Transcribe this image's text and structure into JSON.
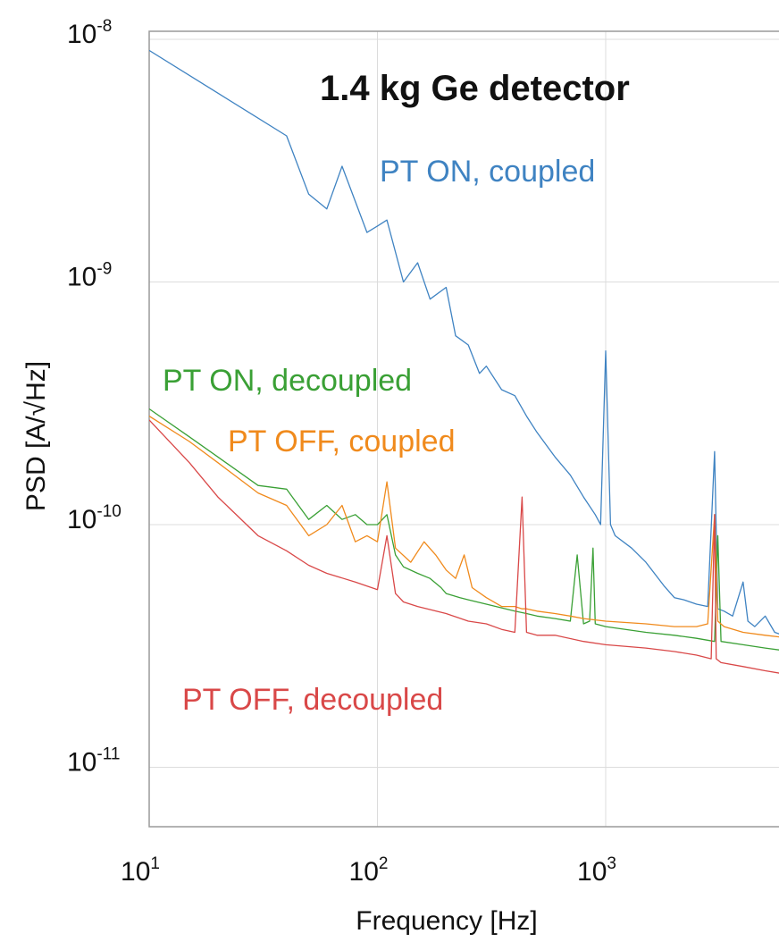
{
  "chart_data": {
    "type": "line",
    "title": "1.4 kg Ge detector",
    "xlabel": "Frequency [Hz]",
    "ylabel": "PSD [A/√Hz]",
    "x_scale": "log",
    "y_scale": "log",
    "xlim": [
      10,
      6500
    ],
    "ylim": [
      5.5e-12,
      1e-08
    ],
    "grid": true,
    "legend": "inline labels",
    "x_ticks": [
      {
        "value": 10,
        "base": "10",
        "exp": "1"
      },
      {
        "value": 100,
        "base": "10",
        "exp": "2"
      },
      {
        "value": 1000,
        "base": "10",
        "exp": "3"
      }
    ],
    "y_ticks": [
      {
        "value": 1e-08,
        "base": "10",
        "exp": "-8"
      },
      {
        "value": 1e-09,
        "base": "10",
        "exp": "-9"
      },
      {
        "value": 1e-10,
        "base": "10",
        "exp": "-10"
      },
      {
        "value": 1e-11,
        "base": "10",
        "exp": "-11"
      }
    ],
    "series": [
      {
        "name": "PT ON, coupled",
        "color": "#3f83c2",
        "x": [
          10,
          20,
          40,
          50,
          60,
          70,
          90,
          100,
          110,
          130,
          150,
          170,
          200,
          220,
          250,
          280,
          300,
          350,
          400,
          450,
          500,
          600,
          700,
          800,
          900,
          950,
          1000,
          1050,
          1100,
          1300,
          1500,
          1800,
          2000,
          2200,
          2500,
          2800,
          3000,
          3100,
          3300,
          3600,
          4000,
          4200,
          4500,
          5000,
          5500,
          6000,
          6500
        ],
        "y": [
          9e-09,
          6e-09,
          4e-09,
          2.3e-09,
          2e-09,
          3e-09,
          1.6e-09,
          1.7e-09,
          1.8e-09,
          1e-09,
          1.2e-09,
          8.5e-10,
          9.5e-10,
          6e-10,
          5.5e-10,
          4.2e-10,
          4.5e-10,
          3.6e-10,
          3.4e-10,
          2.8e-10,
          2.4e-10,
          1.9e-10,
          1.6e-10,
          1.3e-10,
          1.1e-10,
          1e-10,
          5.2e-10,
          1e-10,
          9e-11,
          8e-11,
          7e-11,
          5.6e-11,
          5e-11,
          4.9e-11,
          4.7e-11,
          4.6e-11,
          2e-10,
          4.5e-11,
          4.4e-11,
          4.2e-11,
          5.8e-11,
          4e-11,
          3.8e-11,
          4.2e-11,
          3.6e-11,
          3.5e-11,
          3.4e-11
        ]
      },
      {
        "name": "PT ON, decoupled",
        "color": "#3aa035",
        "x": [
          10,
          15,
          20,
          30,
          40,
          50,
          60,
          70,
          80,
          90,
          100,
          110,
          120,
          130,
          150,
          170,
          190,
          200,
          230,
          250,
          300,
          400,
          450,
          500,
          600,
          700,
          750,
          800,
          850,
          880,
          900,
          1000,
          1500,
          2000,
          2500,
          3000,
          3100,
          3200,
          4000,
          5000,
          6500
        ],
        "y": [
          3e-10,
          2.3e-10,
          1.9e-10,
          1.45e-10,
          1.4e-10,
          1.05e-10,
          1.2e-10,
          1.05e-10,
          1.1e-10,
          1e-10,
          1e-10,
          1.1e-10,
          7.5e-11,
          6.7e-11,
          6.3e-11,
          6e-11,
          5.5e-11,
          5.2e-11,
          5e-11,
          4.9e-11,
          4.7e-11,
          4.4e-11,
          4.3e-11,
          4.2e-11,
          4.1e-11,
          4e-11,
          7.5e-11,
          3.9e-11,
          4e-11,
          8e-11,
          3.9e-11,
          3.8e-11,
          3.6e-11,
          3.5e-11,
          3.4e-11,
          3.3e-11,
          9e-11,
          3.3e-11,
          3.2e-11,
          3.1e-11,
          3e-11
        ]
      },
      {
        "name": "PT OFF, coupled",
        "color": "#f08a1c",
        "x": [
          10,
          15,
          20,
          30,
          40,
          50,
          60,
          70,
          80,
          90,
          100,
          110,
          120,
          140,
          160,
          180,
          200,
          220,
          240,
          260,
          300,
          350,
          400,
          430,
          450,
          500,
          600,
          700,
          800,
          1000,
          1500,
          2000,
          2500,
          2800,
          3000,
          3100,
          3300,
          4000,
          5000,
          6500
        ],
        "y": [
          2.8e-10,
          2.2e-10,
          1.8e-10,
          1.35e-10,
          1.2e-10,
          9e-11,
          1e-10,
          1.2e-10,
          8.5e-11,
          9e-11,
          8.5e-11,
          1.5e-10,
          8e-11,
          7e-11,
          8.5e-11,
          7.5e-11,
          6.5e-11,
          6e-11,
          7.5e-11,
          5.5e-11,
          5e-11,
          4.6e-11,
          4.6e-11,
          4.5e-11,
          4.5e-11,
          4.4e-11,
          4.3e-11,
          4.2e-11,
          4.1e-11,
          4e-11,
          3.9e-11,
          3.8e-11,
          3.8e-11,
          3.9e-11,
          1.1e-10,
          4e-11,
          3.8e-11,
          3.6e-11,
          3.5e-11,
          3.4e-11
        ]
      },
      {
        "name": "PT OFF, decoupled",
        "color": "#d94848",
        "x": [
          10,
          15,
          20,
          30,
          40,
          50,
          60,
          80,
          100,
          110,
          120,
          130,
          150,
          200,
          250,
          300,
          350,
          400,
          430,
          450,
          500,
          600,
          800,
          1000,
          1500,
          2000,
          2500,
          2900,
          3000,
          3050,
          3200,
          4000,
          5000,
          6500
        ],
        "y": [
          2.7e-10,
          1.8e-10,
          1.3e-10,
          9e-11,
          7.8e-11,
          6.8e-11,
          6.3e-11,
          5.8e-11,
          5.4e-11,
          9e-11,
          5.2e-11,
          4.8e-11,
          4.6e-11,
          4.3e-11,
          4e-11,
          3.9e-11,
          3.7e-11,
          3.6e-11,
          1.3e-10,
          3.6e-11,
          3.5e-11,
          3.5e-11,
          3.3e-11,
          3.2e-11,
          3.1e-11,
          3e-11,
          2.9e-11,
          2.8e-11,
          1.1e-10,
          2.8e-11,
          2.7e-11,
          2.6e-11,
          2.5e-11,
          2.4e-11
        ]
      }
    ]
  }
}
